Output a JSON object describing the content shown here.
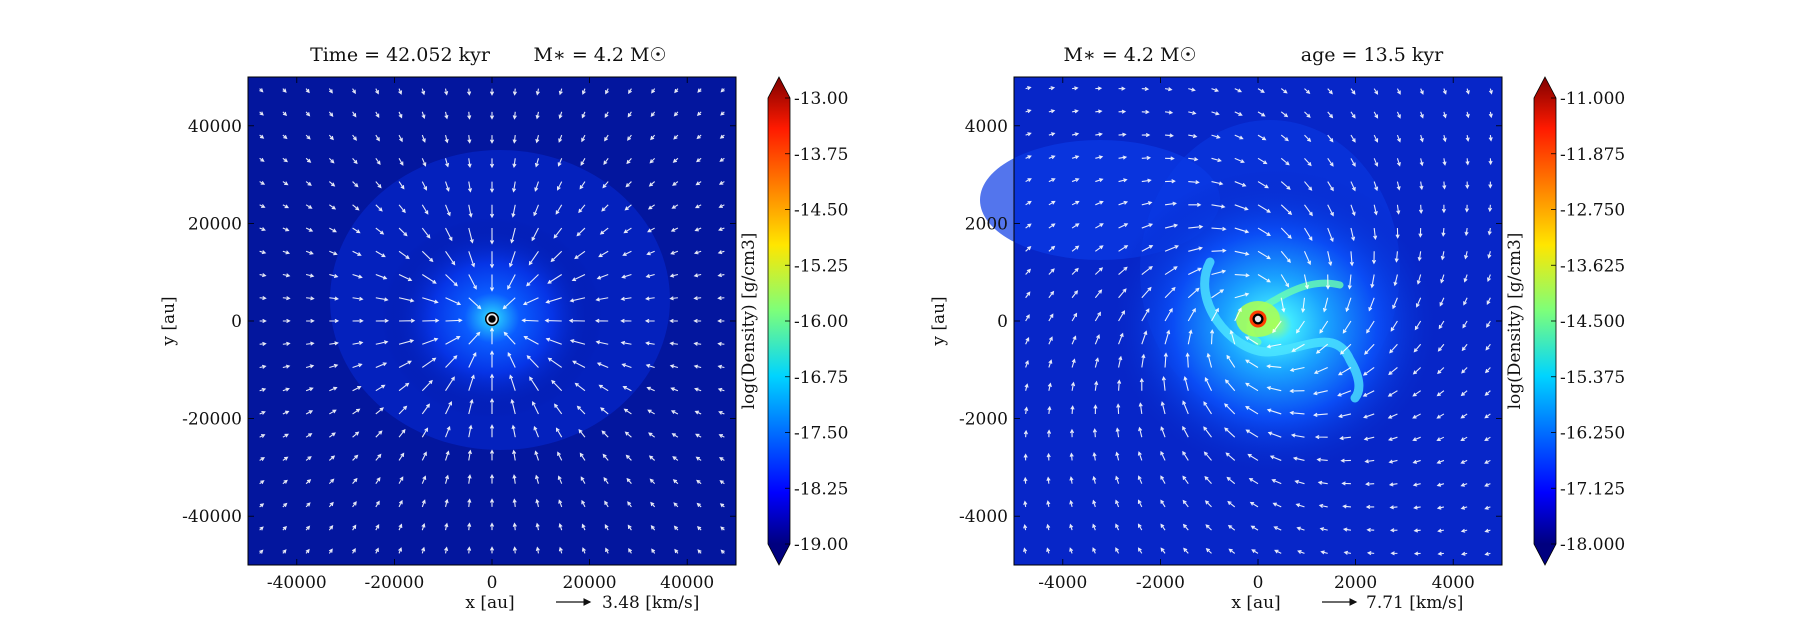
{
  "chart_data": [
    {
      "type": "heatmap",
      "title_left": "Time = 42.052 kyr",
      "title_right": "M∗ = 4.2 M☉",
      "xlabel": "x [au]",
      "ylabel": "y [au]",
      "xlim": [
        -50000,
        50000
      ],
      "ylim": [
        -50000,
        50000
      ],
      "xticks": [
        "-40000",
        "-20000",
        "0",
        "20000",
        "40000"
      ],
      "xtick_values": [
        -40000,
        -20000,
        0,
        20000,
        40000
      ],
      "yticks": [
        "40000",
        "20000",
        "0",
        "-20000",
        "-40000"
      ],
      "ytick_values": [
        40000,
        20000,
        0,
        -20000,
        -40000
      ],
      "quiver_key": "3.48 [km/s]",
      "quiver_field": "infall",
      "density_peak_log": -16.0,
      "colorbar": {
        "label": "log(Density) [g/cm3]",
        "min": -19.0,
        "max": -13.0,
        "ticks": [
          "-13.00",
          "-13.75",
          "-14.50",
          "-15.25",
          "-16.00",
          "-16.75",
          "-17.50",
          "-18.25",
          "-19.00"
        ],
        "tick_values": [
          -13.0,
          -13.75,
          -14.5,
          -15.25,
          -16.0,
          -16.75,
          -17.5,
          -18.25,
          -19.0
        ],
        "extend": "both",
        "colormap": "jet"
      },
      "sink_center": [
        0,
        0
      ]
    },
    {
      "type": "heatmap",
      "title_left": "M∗ = 4.2 M☉",
      "title_right": "age = 13.5 kyr",
      "xlabel": "x [au]",
      "ylabel": "y [au]",
      "xlim": [
        -5000,
        5000
      ],
      "ylim": [
        -5000,
        5000
      ],
      "xticks": [
        "-4000",
        "-2000",
        "0",
        "2000",
        "4000"
      ],
      "xtick_values": [
        -4000,
        -2000,
        0,
        2000,
        4000
      ],
      "yticks": [
        "4000",
        "2000",
        "0",
        "-2000",
        "-4000"
      ],
      "ytick_values": [
        4000,
        2000,
        0,
        -2000,
        -4000
      ],
      "quiver_key": "7.71 [km/s]",
      "quiver_field": "rotating-infall",
      "density_peak_log": -13.6,
      "colorbar": {
        "label": "log(Density) [g/cm3]",
        "min": -18.0,
        "max": -11.0,
        "ticks": [
          "-11.000",
          "-11.875",
          "-12.750",
          "-13.625",
          "-14.500",
          "-15.375",
          "-16.250",
          "-17.125",
          "-18.000"
        ],
        "tick_values": [
          -11.0,
          -11.875,
          -12.75,
          -13.625,
          -14.5,
          -15.375,
          -16.25,
          -17.125,
          -18.0
        ],
        "extend": "both",
        "colormap": "jet"
      },
      "sink_center": [
        0,
        0
      ]
    }
  ]
}
